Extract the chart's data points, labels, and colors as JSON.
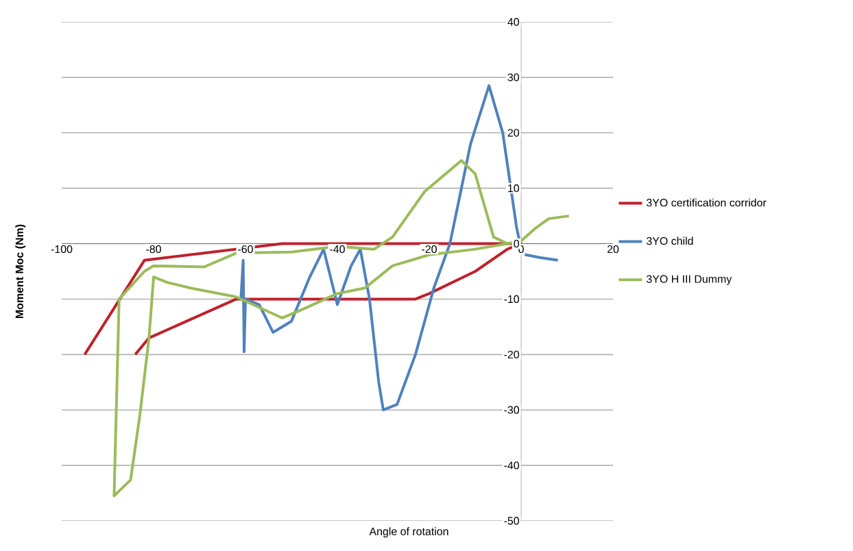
{
  "chart_data": {
    "type": "line",
    "xlabel": "Angle of rotation",
    "ylabel": "Moment Moc (Nm)",
    "xlim": [
      -100,
      20
    ],
    "ylim": [
      -50,
      40
    ],
    "xticks": [
      -100,
      -80,
      -60,
      -40,
      -20,
      0,
      20
    ],
    "yticks": [
      -50,
      -40,
      -30,
      -20,
      -10,
      0,
      10,
      20,
      30,
      40
    ],
    "grid": "y",
    "legend": "right",
    "series": [
      {
        "name": "3YO certification corridor",
        "color": "#c0202a",
        "x": [
          -95,
          -82,
          -52,
          0,
          -3,
          -10,
          -20,
          -23,
          -62,
          -81,
          -84
        ],
        "values": [
          -20,
          -3,
          0,
          0,
          -1,
          -5,
          -9,
          -10,
          -10,
          -17,
          -20
        ]
      },
      {
        "name": "3YO child",
        "color": "#4f81bd",
        "x": [
          -61,
          -60.5,
          -60.3,
          -60,
          -57,
          -54,
          -50,
          -46,
          -43,
          -40,
          -37,
          -35,
          -33,
          -31,
          -30,
          -27,
          -23,
          -19,
          -15.5,
          -11,
          -7,
          -4,
          -1,
          0,
          1,
          4,
          8
        ],
        "values": [
          -10,
          -3,
          -19.5,
          -10,
          -11,
          -16,
          -14,
          -6,
          -1,
          -11,
          -4,
          -1,
          -10,
          -25,
          -30,
          -29,
          -20,
          -8,
          0,
          18,
          28.5,
          20,
          3,
          -1,
          -2,
          -2.5,
          -3
        ]
      },
      {
        "name": "3YO H III Dummy",
        "color": "#9bbb59",
        "x": [
          10.4,
          6,
          3,
          0,
          -3,
          -6,
          -10,
          -13,
          -21,
          -28,
          -32,
          -40,
          -50,
          -62,
          -69,
          -80,
          -82,
          -87.5,
          -88.6,
          -85,
          -83,
          -81,
          -80,
          -77,
          -72,
          -62,
          -52,
          -48,
          -40,
          -34,
          -28,
          -20,
          -10,
          -3
        ],
        "values": [
          5,
          4.5,
          2.7,
          0.5,
          0,
          1.2,
          12.6,
          15,
          9.4,
          1.2,
          -1,
          -0.5,
          -1.5,
          -1.7,
          -4.2,
          -4,
          -5,
          -10,
          -45.5,
          -42.6,
          -31,
          -17,
          -6,
          -7,
          -8,
          -9.6,
          -13.4,
          -12,
          -9,
          -8,
          -4,
          -2,
          -1,
          0
        ]
      }
    ]
  }
}
